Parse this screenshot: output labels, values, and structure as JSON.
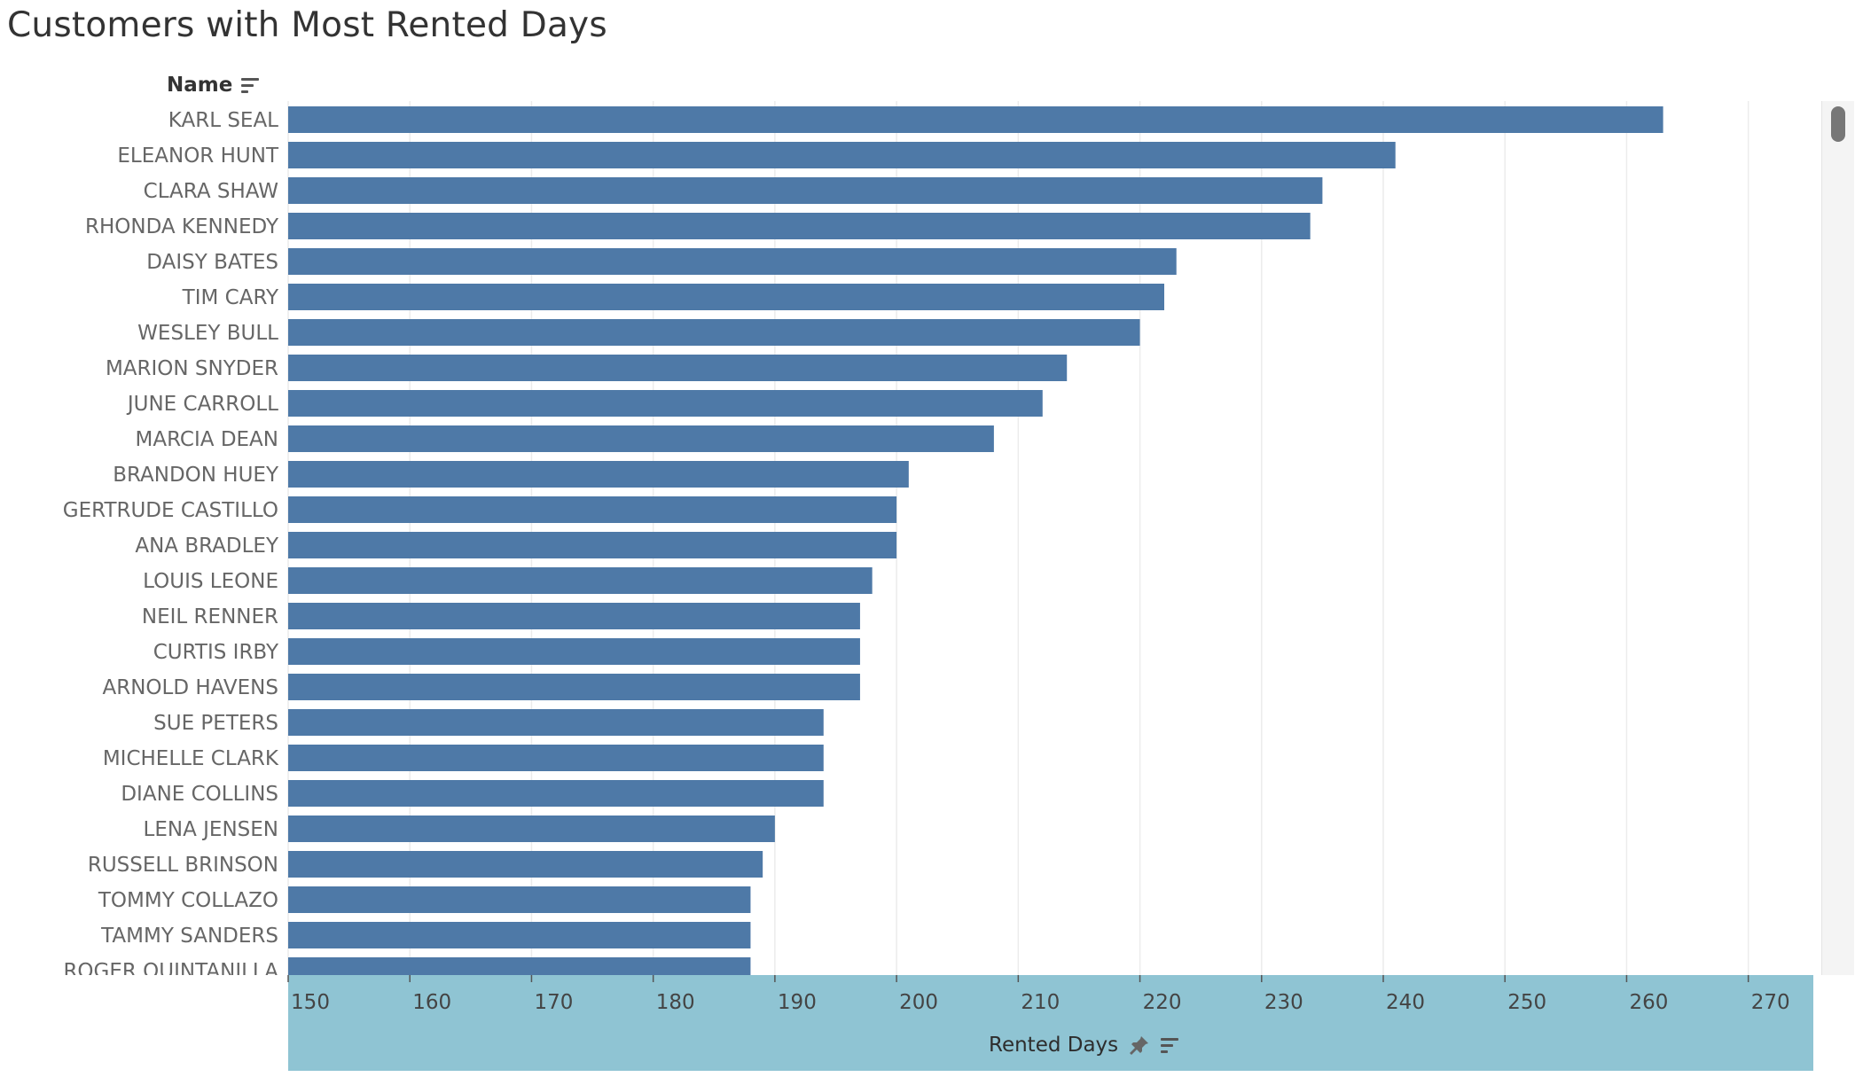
{
  "chart_data": {
    "type": "bar",
    "orientation": "horizontal",
    "title": "Customers with Most Rented Days",
    "ylabel": "Name",
    "xlabel": "Rented Days",
    "xlim": [
      150,
      276
    ],
    "x_ticks": [
      150,
      160,
      170,
      180,
      190,
      200,
      210,
      220,
      230,
      240,
      250,
      260,
      270
    ],
    "categories": [
      "KARL SEAL",
      "ELEANOR HUNT",
      "CLARA SHAW",
      "RHONDA KENNEDY",
      "DAISY BATES",
      "TIM CARY",
      "WESLEY BULL",
      "MARION SNYDER",
      "JUNE CARROLL",
      "MARCIA DEAN",
      "BRANDON HUEY",
      "GERTRUDE CASTILLO",
      "ANA BRADLEY",
      "LOUIS LEONE",
      "NEIL RENNER",
      "CURTIS IRBY",
      "ARNOLD HAVENS",
      "SUE PETERS",
      "MICHELLE CLARK",
      "DIANE COLLINS",
      "LENA JENSEN",
      "RUSSELL BRINSON",
      "TOMMY COLLAZO",
      "TAMMY SANDERS",
      "ROGER QUINTANILLA"
    ],
    "values": [
      263,
      241,
      235,
      234,
      223,
      222,
      220,
      214,
      212,
      208,
      201,
      200,
      200,
      198,
      197,
      197,
      197,
      194,
      194,
      194,
      190,
      189,
      188,
      188,
      188
    ],
    "bar_color": "#4e79a7",
    "grid": true,
    "axis_band_color": "#8fc4d3",
    "legend": "none"
  },
  "icons": {
    "name_sort": "sort-descending-icon",
    "axis_pin": "pin-icon",
    "axis_sort": "sort-descending-icon"
  }
}
